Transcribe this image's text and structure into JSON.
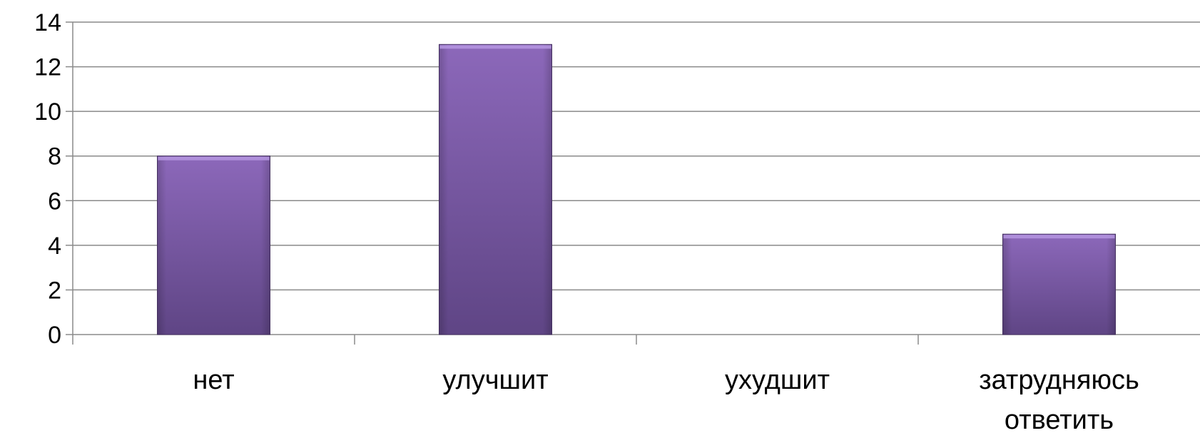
{
  "chart_data": {
    "type": "bar",
    "title": "",
    "xlabel": "",
    "ylabel": "",
    "categories": [
      "нет",
      "улучшит",
      "ухудшит",
      "затрудняюсь ответить"
    ],
    "category_lines": [
      [
        "нет"
      ],
      [
        "улучшит"
      ],
      [
        "ухудшит"
      ],
      [
        "затрудняюсь",
        "ответить"
      ]
    ],
    "values": [
      8,
      13,
      0,
      4.5
    ],
    "ylim": [
      0,
      14
    ],
    "yticks": [
      0,
      2,
      4,
      6,
      8,
      10,
      12,
      14
    ],
    "grid": true,
    "legend": "none",
    "colors": {
      "bar_top": "#8c68ba",
      "bar_bottom": "#5f4585",
      "bar_highlight": "#b596e0",
      "grid": "#8a8a8a",
      "axis": "#8a8a8a",
      "text": "#000000"
    }
  }
}
